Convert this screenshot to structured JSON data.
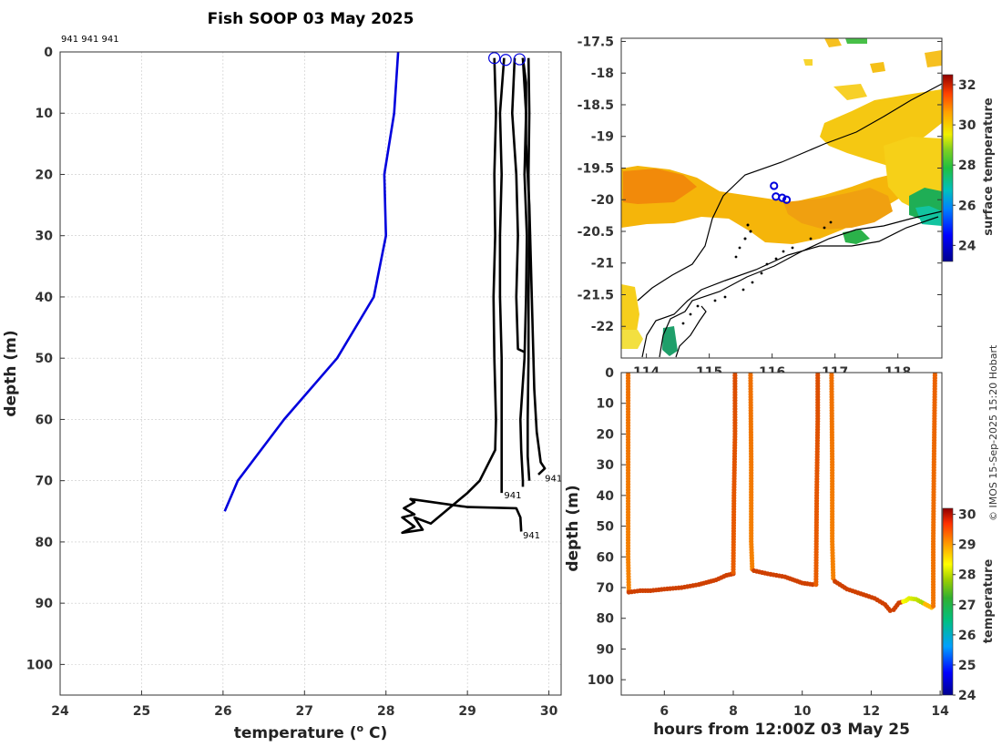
{
  "title": "Fish SOOP 03 May 2025",
  "credit": "© IMOS 15-Sep-2025 15:20 Hobart",
  "chart_data": [
    {
      "type": "line",
      "name": "profile-chart",
      "xlabel": "temperature (o C)",
      "xlabel_base": "temperature (",
      "xlabel_sup": "o",
      "xlabel_end": " C)",
      "ylabel": "depth (m)",
      "xlim": [
        24,
        30.15
      ],
      "ylim": [
        105,
        0
      ],
      "xticks": [
        24,
        25,
        26,
        27,
        28,
        29,
        30
      ],
      "yticks": [
        0,
        10,
        20,
        30,
        40,
        50,
        60,
        70,
        80,
        90,
        100
      ],
      "top_note": "941 941 941",
      "series": [
        {
          "name": "climatology",
          "color": "#0000dd",
          "points": [
            [
              28.15,
              0
            ],
            [
              28.1,
              10
            ],
            [
              27.98,
              20
            ],
            [
              28.0,
              30
            ],
            [
              27.85,
              40
            ],
            [
              27.4,
              50
            ],
            [
              26.75,
              60
            ],
            [
              26.18,
              70
            ],
            [
              26.02,
              75
            ]
          ]
        },
        {
          "name": "profile-1",
          "color": "#000000",
          "points": [
            [
              29.33,
              1
            ],
            [
              29.35,
              10
            ],
            [
              29.33,
              20
            ],
            [
              29.34,
              30
            ],
            [
              29.32,
              40
            ],
            [
              29.33,
              50
            ],
            [
              29.35,
              60
            ],
            [
              29.34,
              65
            ],
            [
              29.15,
              70
            ],
            [
              29.0,
              72
            ],
            [
              28.55,
              77
            ],
            [
              28.35,
              76
            ],
            [
              28.45,
              78
            ],
            [
              28.2,
              78.5
            ],
            [
              28.35,
              77.5
            ],
            [
              28.2,
              76
            ],
            [
              28.35,
              75.5
            ],
            [
              28.22,
              74.5
            ],
            [
              28.35,
              73.5
            ],
            [
              28.3,
              73
            ],
            [
              29.0,
              74.3
            ],
            [
              29.6,
              74.5
            ],
            [
              29.65,
              76
            ],
            [
              29.66,
              78.3
            ]
          ]
        },
        {
          "name": "profile-2",
          "color": "#000000",
          "points": [
            [
              29.45,
              1
            ],
            [
              29.4,
              10
            ],
            [
              29.42,
              20
            ],
            [
              29.4,
              30
            ],
            [
              29.4,
              40
            ],
            [
              29.42,
              50
            ],
            [
              29.42,
              60
            ],
            [
              29.42,
              70
            ],
            [
              29.42,
              72
            ]
          ]
        },
        {
          "name": "profile-3",
          "color": "#000000",
          "points": [
            [
              29.58,
              1
            ],
            [
              29.55,
              10
            ],
            [
              29.6,
              20
            ],
            [
              29.62,
              30
            ],
            [
              29.6,
              40
            ],
            [
              29.62,
              48.5
            ],
            [
              29.7,
              49
            ]
          ]
        },
        {
          "name": "profile-4",
          "color": "#000000",
          "points": [
            [
              29.68,
              1
            ],
            [
              29.72,
              10
            ],
            [
              29.7,
              20
            ],
            [
              29.73,
              30
            ],
            [
              29.72,
              40
            ],
            [
              29.7,
              50
            ],
            [
              29.65,
              60
            ],
            [
              29.66,
              65
            ],
            [
              29.68,
              70
            ],
            [
              29.68,
              71
            ]
          ]
        },
        {
          "name": "profile-5",
          "color": "#000000",
          "points": [
            [
              29.75,
              1
            ],
            [
              29.76,
              10
            ],
            [
              29.75,
              20
            ],
            [
              29.76,
              30
            ],
            [
              29.75,
              40
            ],
            [
              29.75,
              50
            ],
            [
              29.74,
              60
            ],
            [
              29.74,
              66
            ],
            [
              29.76,
              70
            ]
          ]
        },
        {
          "name": "profile-6",
          "color": "#000000",
          "points": [
            [
              29.68,
              1
            ],
            [
              29.72,
              5
            ],
            [
              29.72,
              15
            ],
            [
              29.76,
              25
            ],
            [
              29.78,
              35
            ],
            [
              29.8,
              45
            ],
            [
              29.82,
              55
            ],
            [
              29.85,
              62
            ],
            [
              29.9,
              67
            ],
            [
              29.95,
              68
            ],
            [
              29.87,
              69
            ]
          ]
        }
      ],
      "surface_markers": [
        [
          29.33,
          1
        ],
        [
          29.47,
          1.3
        ],
        [
          29.64,
          1.2
        ]
      ],
      "profile_labels": [
        {
          "text": "941",
          "x": 29.95,
          "y": 69.5
        },
        {
          "text": "941",
          "x": 29.45,
          "y": 72.3
        },
        {
          "text": "941",
          "x": 29.68,
          "y": 78.8
        }
      ]
    },
    {
      "type": "heatmap",
      "name": "map-chart",
      "xlim": [
        113.6,
        118.7
      ],
      "ylim": [
        -22.5,
        -17.45
      ],
      "xticks": [
        114,
        115,
        116,
        117,
        118
      ],
      "yticks": [
        -17.5,
        -18,
        -18.5,
        -19,
        -19.5,
        -20,
        -20.5,
        -21,
        -21.5,
        -22
      ],
      "ytick_labels": [
        "-17.5",
        "-18",
        "-18.5",
        "-19",
        "-19.5",
        "-20",
        "-20.5",
        "-21",
        "-21.5",
        "-22"
      ],
      "colorbar_label": "surface temperature",
      "colorbar_range": [
        23.2,
        32.5
      ],
      "colorbar_ticks": [
        24,
        26,
        28,
        30,
        32
      ],
      "track_points": [
        [
          116.03,
          -19.78
        ],
        [
          116.06,
          -19.95
        ],
        [
          116.16,
          -19.97
        ],
        [
          116.23,
          -20.0
        ]
      ]
    },
    {
      "type": "scatter",
      "name": "section-chart",
      "xlabel": "hours from 12:00Z 03 May 25",
      "ylabel": "depth (m)",
      "xlim": [
        4.75,
        14.05
      ],
      "ylim": [
        105,
        0
      ],
      "xticks": [
        6,
        8,
        10,
        12,
        14
      ],
      "yticks": [
        0,
        10,
        20,
        30,
        40,
        50,
        60,
        70,
        80,
        90,
        100
      ],
      "colorbar_label": "temperature",
      "colorbar_range": [
        24,
        30.2
      ],
      "colorbar_ticks": [
        24,
        25,
        26,
        27,
        28,
        29,
        30
      ],
      "casts": [
        {
          "down": [
            [
              4.95,
              0,
              29.5
            ],
            [
              4.95,
              20,
              29.4
            ],
            [
              4.95,
              40,
              29.4
            ],
            [
              4.95,
              60,
              29.3
            ],
            [
              4.97,
              71,
              29.3
            ]
          ],
          "bottom": [
            [
              4.97,
              71.5
            ],
            [
              5.3,
              71
            ],
            [
              5.6,
              71
            ],
            [
              6.0,
              70.5
            ],
            [
              6.5,
              70
            ],
            [
              7.0,
              69
            ],
            [
              7.5,
              67.5
            ],
            [
              7.8,
              66
            ],
            [
              8.0,
              65.5
            ]
          ],
          "up": [
            [
              8.0,
              65
            ],
            [
              8.02,
              40
            ],
            [
              8.05,
              20
            ],
            [
              8.05,
              0
            ]
          ]
        },
        {
          "down": [
            [
              8.5,
              0,
              29.4
            ],
            [
              8.52,
              30,
              29.3
            ],
            [
              8.52,
              55,
              29.3
            ],
            [
              8.55,
              64,
              29.3
            ]
          ],
          "bottom": [
            [
              8.6,
              64.5
            ],
            [
              9.0,
              65.5
            ],
            [
              9.5,
              66.5
            ],
            [
              10.0,
              68.5
            ],
            [
              10.3,
              69
            ]
          ],
          "up": [
            [
              10.4,
              69
            ],
            [
              10.42,
              40
            ],
            [
              10.45,
              15
            ],
            [
              10.45,
              0
            ]
          ]
        },
        {
          "down": [
            [
              10.85,
              0,
              29.3
            ],
            [
              10.87,
              30,
              29.3
            ],
            [
              10.87,
              55,
              29.3
            ],
            [
              10.9,
              67,
              29.3
            ]
          ],
          "bottom": [
            [
              10.95,
              68
            ],
            [
              11.3,
              70.5
            ],
            [
              11.7,
              72
            ],
            [
              12.1,
              73.5
            ],
            [
              12.4,
              75.5
            ],
            [
              12.55,
              77.5
            ],
            [
              12.65,
              77.2
            ],
            [
              12.8,
              75
            ],
            [
              13.0,
              74.3
            ],
            [
              13.1,
              73.5
            ],
            [
              13.3,
              73.8
            ],
            [
              13.5,
              75
            ],
            [
              13.75,
              76.5
            ]
          ],
          "up": [
            [
              13.8,
              76
            ],
            [
              13.8,
              55
            ],
            [
              13.82,
              30
            ],
            [
              13.85,
              0
            ]
          ]
        }
      ]
    }
  ]
}
